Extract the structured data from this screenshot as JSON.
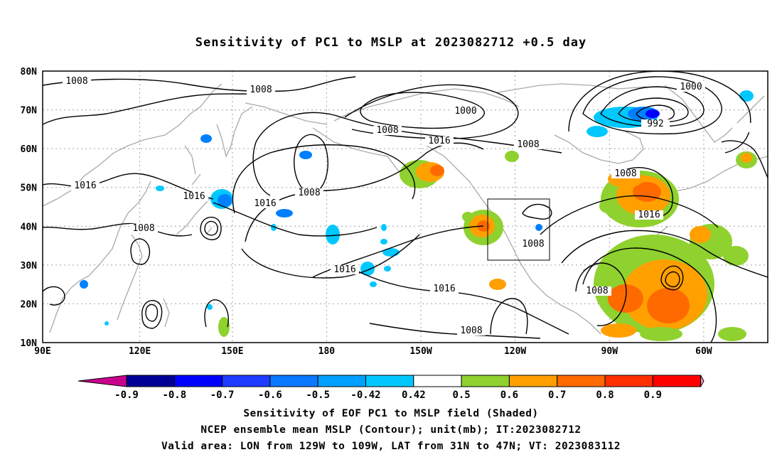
{
  "title": "Sensitivity of PC1 to MSLP at 2023082712 +0.5 day",
  "map": {
    "lat_labels": [
      "80N",
      "70N",
      "60N",
      "50N",
      "40N",
      "30N",
      "20N",
      "10N"
    ],
    "lon_labels": [
      "90E",
      "120E",
      "150E",
      "180",
      "150W",
      "120W",
      "90W",
      "60W"
    ],
    "contour_labels": [
      "1008",
      "1008",
      "1000",
      "1008",
      "1008",
      "992",
      "1000",
      "1016",
      "1016",
      "1016",
      "1016",
      "1008",
      "1008",
      "1016",
      "1008",
      "1016",
      "1008",
      "1016",
      "1008",
      "1008"
    ],
    "shade_colors": {
      "neg_light": "#00c8ff",
      "neg_mid": "#0080ff",
      "neg_strong": "#0000ff",
      "neg_dark": "#0000a0",
      "pos_light": "#8fd12e",
      "pos_mid": "#ffa000",
      "pos_strong": "#ff6a00",
      "pos_dark": "#ff3000"
    }
  },
  "colorbar": {
    "labels": [
      "-0.9",
      "-0.8",
      "-0.7",
      "-0.6",
      "-0.5",
      "-0.42",
      "0.42",
      "0.5",
      "0.6",
      "0.7",
      "0.8",
      "0.9"
    ],
    "colors": [
      "#000096",
      "#0000ff",
      "#1e3cff",
      "#0a78ff",
      "#00a0ff",
      "#00c8ff",
      "#ffffff",
      "#8fd12e",
      "#ffa000",
      "#ff6a00",
      "#ff3000",
      "#ff0000"
    ],
    "left_tip": "#c8008c",
    "right_tip": "#ff96c8"
  },
  "captions": [
    "Sensitivity of EOF PC1 to MSLP field (Shaded)",
    "NCEP ensemble mean MSLP (Contour); unit(mb); IT:2023082712",
    "Valid area: LON from 129W to 109W, LAT from 31N to 47N; VT: 2023083112"
  ]
}
